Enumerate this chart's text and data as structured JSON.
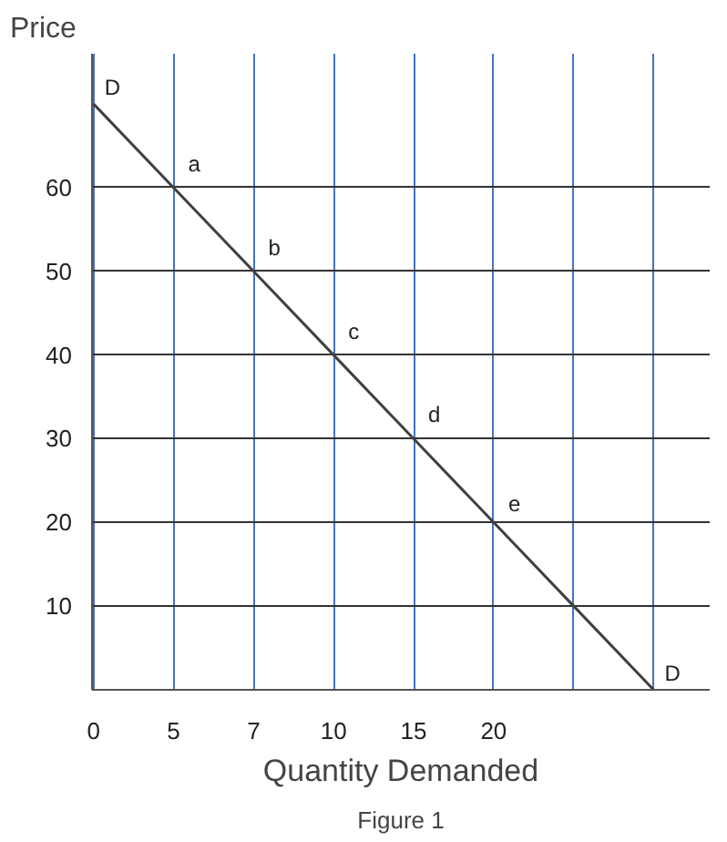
{
  "chart_data": {
    "type": "line",
    "xlabel": "Quantity Demanded",
    "ylabel": "Price",
    "categories": [
      "0",
      "5",
      "7",
      "10",
      "15",
      "20",
      null,
      null
    ],
    "series": [
      {
        "name": "D",
        "color": "#404040",
        "values": [
          70,
          60,
          50,
          40,
          30,
          20,
          10,
          0
        ]
      }
    ],
    "ylim": [
      0,
      76
    ],
    "yticks": [
      10,
      20,
      30,
      40,
      50,
      60
    ],
    "grid": true,
    "marker": "none",
    "line_style": "solid",
    "annotations": [
      {
        "text": "a",
        "x": "5",
        "y": 60
      },
      {
        "text": "b",
        "x": "7",
        "y": 50
      },
      {
        "text": "c",
        "x": "10",
        "y": 40
      },
      {
        "text": "d",
        "x": "15",
        "y": 30
      },
      {
        "text": "e",
        "x": "20",
        "y": 20
      },
      "Figure 1"
    ]
  }
}
